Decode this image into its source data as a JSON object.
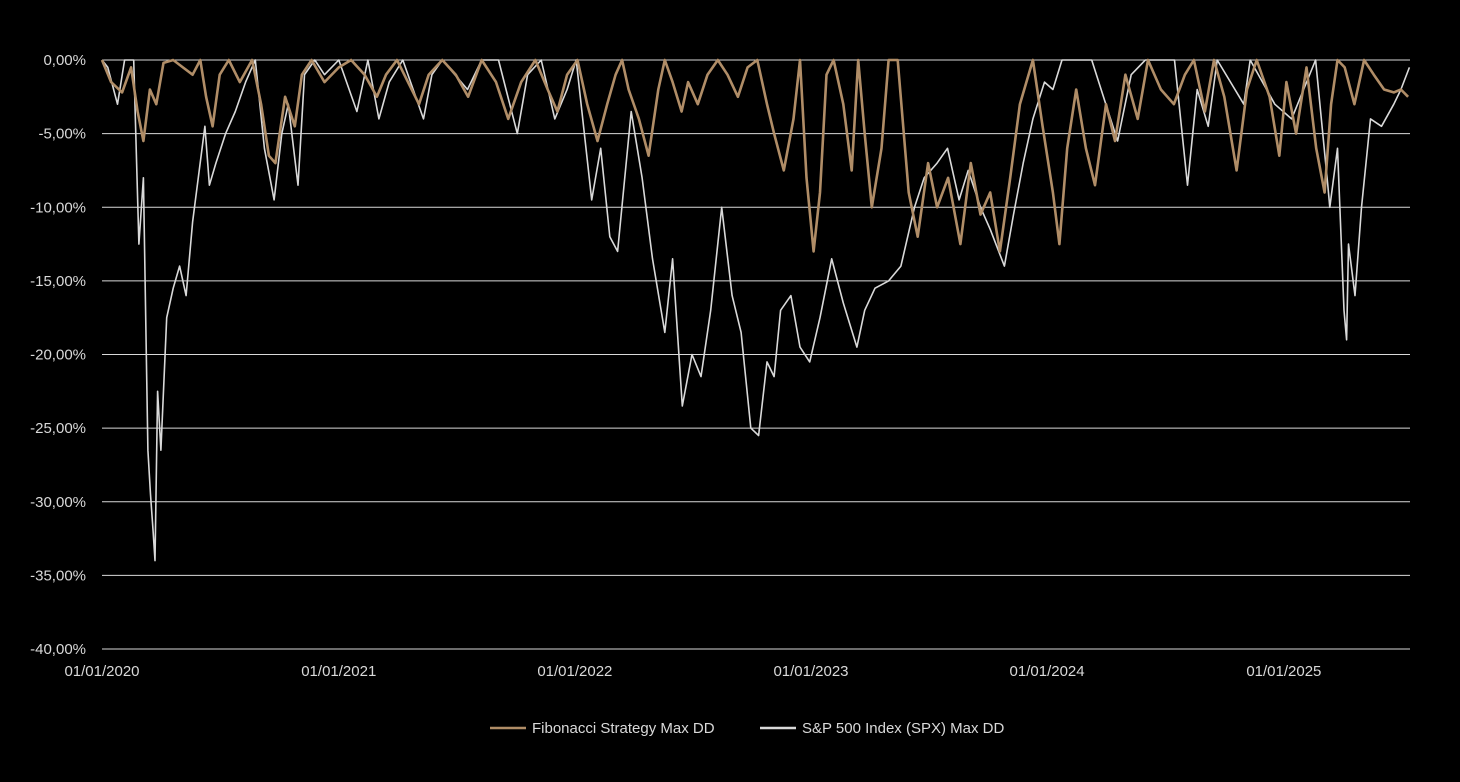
{
  "colors": {
    "background": "#000000",
    "grid": "#d9d9d9",
    "text": "#d9d9d9"
  },
  "chart_data": {
    "type": "line",
    "title": "",
    "xlabel": "",
    "ylabel": "",
    "ylim": [
      -40,
      0
    ],
    "y_ticks": [
      0,
      -5,
      -10,
      -15,
      -20,
      -25,
      -30,
      -35,
      -40
    ],
    "y_tick_labels": [
      "0,00%",
      "-5,00%",
      "-10,00%",
      "-15,00%",
      "-20,00%",
      "-25,00%",
      "-30,00%",
      "-35,00%",
      "-40,00%"
    ],
    "xlim": [
      "2020-01-01",
      "2025-07-15"
    ],
    "x_ticks": [
      "2020-01-01",
      "2021-01-01",
      "2022-01-01",
      "2023-01-01",
      "2024-01-01",
      "2025-01-01"
    ],
    "x_tick_labels": [
      "01/01/2020",
      "01/01/2021",
      "01/01/2022",
      "01/01/2023",
      "01/01/2024",
      "01/01/2025"
    ],
    "grid": "horizontal",
    "legend": "bottom",
    "series": [
      {
        "name": "Fibonacci Strategy Max DD",
        "color": "#b08d67",
        "points": [
          [
            "2020-01-01",
            0.0
          ],
          [
            "2020-01-15",
            -1.5
          ],
          [
            "2020-02-01",
            -2.2
          ],
          [
            "2020-02-15",
            -0.5
          ],
          [
            "2020-02-25",
            -3.5
          ],
          [
            "2020-03-05",
            -5.5
          ],
          [
            "2020-03-15",
            -2.0
          ],
          [
            "2020-03-25",
            -3.0
          ],
          [
            "2020-04-05",
            -0.2
          ],
          [
            "2020-04-20",
            0.0
          ],
          [
            "2020-05-05",
            -0.5
          ],
          [
            "2020-05-20",
            -1.0
          ],
          [
            "2020-06-01",
            0.0
          ],
          [
            "2020-06-10",
            -2.5
          ],
          [
            "2020-06-20",
            -4.5
          ],
          [
            "2020-07-01",
            -1.0
          ],
          [
            "2020-07-15",
            0.0
          ],
          [
            "2020-08-01",
            -1.5
          ],
          [
            "2020-08-20",
            0.0
          ],
          [
            "2020-09-03",
            -3.0
          ],
          [
            "2020-09-15",
            -6.5
          ],
          [
            "2020-09-25",
            -7.0
          ],
          [
            "2020-10-10",
            -2.5
          ],
          [
            "2020-10-25",
            -4.5
          ],
          [
            "2020-11-05",
            -1.0
          ],
          [
            "2020-11-20",
            0.0
          ],
          [
            "2020-12-10",
            -1.5
          ],
          [
            "2021-01-01",
            -0.5
          ],
          [
            "2021-01-20",
            0.0
          ],
          [
            "2021-02-10",
            -1.0
          ],
          [
            "2021-03-01",
            -2.5
          ],
          [
            "2021-03-15",
            -1.0
          ],
          [
            "2021-04-01",
            0.0
          ],
          [
            "2021-05-05",
            -3.0
          ],
          [
            "2021-05-20",
            -1.0
          ],
          [
            "2021-06-10",
            0.0
          ],
          [
            "2021-07-01",
            -1.0
          ],
          [
            "2021-07-20",
            -2.5
          ],
          [
            "2021-08-10",
            0.0
          ],
          [
            "2021-09-01",
            -1.5
          ],
          [
            "2021-09-20",
            -4.0
          ],
          [
            "2021-10-10",
            -1.5
          ],
          [
            "2021-11-01",
            0.0
          ],
          [
            "2021-11-20",
            -2.0
          ],
          [
            "2021-12-05",
            -3.5
          ],
          [
            "2021-12-20",
            -1.0
          ],
          [
            "2022-01-05",
            0.0
          ],
          [
            "2022-01-20",
            -3.0
          ],
          [
            "2022-02-05",
            -5.5
          ],
          [
            "2022-02-20",
            -3.0
          ],
          [
            "2022-03-05",
            -1.0
          ],
          [
            "2022-03-15",
            0.0
          ],
          [
            "2022-03-25",
            -2.0
          ],
          [
            "2022-04-10",
            -4.0
          ],
          [
            "2022-04-25",
            -6.5
          ],
          [
            "2022-05-10",
            -2.0
          ],
          [
            "2022-05-20",
            0.0
          ],
          [
            "2022-06-01",
            -1.5
          ],
          [
            "2022-06-15",
            -3.5
          ],
          [
            "2022-06-25",
            -1.5
          ],
          [
            "2022-07-10",
            -3.0
          ],
          [
            "2022-07-25",
            -1.0
          ],
          [
            "2022-08-10",
            0.0
          ],
          [
            "2022-08-25",
            -1.0
          ],
          [
            "2022-09-10",
            -2.5
          ],
          [
            "2022-09-25",
            -0.5
          ],
          [
            "2022-10-10",
            0.0
          ],
          [
            "2022-10-25",
            -3.0
          ],
          [
            "2022-11-05",
            -5.0
          ],
          [
            "2022-11-20",
            -7.5
          ],
          [
            "2022-12-05",
            -4.0
          ],
          [
            "2022-12-15",
            0.0
          ],
          [
            "2022-12-25",
            -8.0
          ],
          [
            "2023-01-05",
            -13.0
          ],
          [
            "2023-01-15",
            -9.0
          ],
          [
            "2023-01-25",
            -1.0
          ],
          [
            "2023-02-05",
            0.0
          ],
          [
            "2023-02-20",
            -3.0
          ],
          [
            "2023-03-05",
            -7.5
          ],
          [
            "2023-03-15",
            0.0
          ],
          [
            "2023-03-25",
            -5.0
          ],
          [
            "2023-04-05",
            -10.0
          ],
          [
            "2023-04-20",
            -6.0
          ],
          [
            "2023-05-01",
            0.0
          ],
          [
            "2023-05-15",
            0.0
          ],
          [
            "2023-06-01",
            -9.0
          ],
          [
            "2023-06-15",
            -12.0
          ],
          [
            "2023-07-01",
            -7.0
          ],
          [
            "2023-07-15",
            -10.0
          ],
          [
            "2023-08-01",
            -8.0
          ],
          [
            "2023-08-20",
            -12.5
          ],
          [
            "2023-09-05",
            -7.0
          ],
          [
            "2023-09-20",
            -10.5
          ],
          [
            "2023-10-05",
            -9.0
          ],
          [
            "2023-10-20",
            -13.0
          ],
          [
            "2023-11-05",
            -8.0
          ],
          [
            "2023-11-20",
            -3.0
          ],
          [
            "2023-12-10",
            0.0
          ],
          [
            "2023-12-25",
            -4.5
          ],
          [
            "2024-01-10",
            -9.0
          ],
          [
            "2024-01-20",
            -12.5
          ],
          [
            "2024-02-01",
            -6.0
          ],
          [
            "2024-02-15",
            -2.0
          ],
          [
            "2024-03-01",
            -6.0
          ],
          [
            "2024-03-15",
            -8.5
          ],
          [
            "2024-04-01",
            -3.0
          ],
          [
            "2024-04-15",
            -5.5
          ],
          [
            "2024-05-01",
            -1.0
          ],
          [
            "2024-05-20",
            -4.0
          ],
          [
            "2024-06-05",
            0.0
          ],
          [
            "2024-06-25",
            -2.0
          ],
          [
            "2024-07-15",
            -3.0
          ],
          [
            "2024-08-01",
            -1.0
          ],
          [
            "2024-08-15",
            0.0
          ],
          [
            "2024-09-01",
            -3.5
          ],
          [
            "2024-09-15",
            0.0
          ],
          [
            "2024-10-01",
            -2.5
          ],
          [
            "2024-10-20",
            -7.5
          ],
          [
            "2024-11-05",
            -2.0
          ],
          [
            "2024-11-20",
            0.0
          ],
          [
            "2024-12-10",
            -2.5
          ],
          [
            "2024-12-25",
            -6.5
          ],
          [
            "2025-01-05",
            -1.5
          ],
          [
            "2025-01-20",
            -5.0
          ],
          [
            "2025-02-05",
            -0.5
          ],
          [
            "2025-02-20",
            -6.0
          ],
          [
            "2025-03-05",
            -9.0
          ],
          [
            "2025-03-15",
            -3.0
          ],
          [
            "2025-03-25",
            0.0
          ],
          [
            "2025-04-05",
            -0.5
          ],
          [
            "2025-04-20",
            -3.0
          ],
          [
            "2025-05-05",
            0.0
          ],
          [
            "2025-05-20",
            -1.0
          ],
          [
            "2025-06-05",
            -2.0
          ],
          [
            "2025-06-20",
            -2.2
          ],
          [
            "2025-07-01",
            -2.0
          ],
          [
            "2025-07-12",
            -2.5
          ]
        ]
      },
      {
        "name": "S&P 500 Index (SPX) Max DD",
        "color": "#d9d9d9",
        "points": [
          [
            "2020-01-01",
            0.0
          ],
          [
            "2020-01-10",
            -0.5
          ],
          [
            "2020-01-25",
            -3.0
          ],
          [
            "2020-02-05",
            0.0
          ],
          [
            "2020-02-19",
            0.0
          ],
          [
            "2020-02-27",
            -12.5
          ],
          [
            "2020-03-05",
            -8.0
          ],
          [
            "2020-03-12",
            -26.5
          ],
          [
            "2020-03-16",
            -29.5
          ],
          [
            "2020-03-20",
            -32.0
          ],
          [
            "2020-03-23",
            -34.0
          ],
          [
            "2020-03-27",
            -22.5
          ],
          [
            "2020-04-01",
            -26.5
          ],
          [
            "2020-04-10",
            -17.5
          ],
          [
            "2020-04-20",
            -15.5
          ],
          [
            "2020-04-30",
            -14.0
          ],
          [
            "2020-05-10",
            -16.0
          ],
          [
            "2020-05-20",
            -11.0
          ],
          [
            "2020-06-08",
            -4.5
          ],
          [
            "2020-06-15",
            -8.5
          ],
          [
            "2020-06-25",
            -7.0
          ],
          [
            "2020-07-10",
            -5.0
          ],
          [
            "2020-07-25",
            -3.5
          ],
          [
            "2020-08-10",
            -1.5
          ],
          [
            "2020-08-25",
            0.0
          ],
          [
            "2020-09-08",
            -6.0
          ],
          [
            "2020-09-23",
            -9.5
          ],
          [
            "2020-10-05",
            -5.0
          ],
          [
            "2020-10-15",
            -3.0
          ],
          [
            "2020-10-30",
            -8.5
          ],
          [
            "2020-11-09",
            -1.0
          ],
          [
            "2020-11-25",
            0.0
          ],
          [
            "2020-12-10",
            -1.0
          ],
          [
            "2021-01-01",
            0.0
          ],
          [
            "2021-01-29",
            -3.5
          ],
          [
            "2021-02-15",
            0.0
          ],
          [
            "2021-03-04",
            -4.0
          ],
          [
            "2021-03-20",
            -1.5
          ],
          [
            "2021-04-10",
            0.0
          ],
          [
            "2021-05-12",
            -4.0
          ],
          [
            "2021-05-25",
            -1.0
          ],
          [
            "2021-06-10",
            0.0
          ],
          [
            "2021-07-19",
            -2.0
          ],
          [
            "2021-08-10",
            0.0
          ],
          [
            "2021-09-05",
            0.0
          ],
          [
            "2021-10-04",
            -5.0
          ],
          [
            "2021-10-20",
            -1.0
          ],
          [
            "2021-11-10",
            0.0
          ],
          [
            "2021-12-01",
            -4.0
          ],
          [
            "2021-12-20",
            -2.0
          ],
          [
            "2022-01-03",
            0.0
          ],
          [
            "2022-01-27",
            -9.5
          ],
          [
            "2022-02-10",
            -6.0
          ],
          [
            "2022-02-24",
            -12.0
          ],
          [
            "2022-03-08",
            -13.0
          ],
          [
            "2022-03-29",
            -3.5
          ],
          [
            "2022-04-15",
            -8.0
          ],
          [
            "2022-05-01",
            -13.5
          ],
          [
            "2022-05-20",
            -18.5
          ],
          [
            "2022-06-01",
            -13.5
          ],
          [
            "2022-06-16",
            -23.5
          ],
          [
            "2022-07-01",
            -20.0
          ],
          [
            "2022-07-15",
            -21.5
          ],
          [
            "2022-07-30",
            -17.0
          ],
          [
            "2022-08-16",
            -10.0
          ],
          [
            "2022-09-01",
            -16.0
          ],
          [
            "2022-09-15",
            -18.5
          ],
          [
            "2022-09-30",
            -25.0
          ],
          [
            "2022-10-12",
            -25.5
          ],
          [
            "2022-10-25",
            -20.5
          ],
          [
            "2022-11-05",
            -21.5
          ],
          [
            "2022-11-15",
            -17.0
          ],
          [
            "2022-12-01",
            -16.0
          ],
          [
            "2022-12-15",
            -19.5
          ],
          [
            "2022-12-30",
            -20.5
          ],
          [
            "2023-01-15",
            -17.5
          ],
          [
            "2023-02-02",
            -13.5
          ],
          [
            "2023-02-20",
            -16.5
          ],
          [
            "2023-03-13",
            -19.5
          ],
          [
            "2023-03-25",
            -17.0
          ],
          [
            "2023-04-10",
            -15.5
          ],
          [
            "2023-05-01",
            -15.0
          ],
          [
            "2023-05-20",
            -14.0
          ],
          [
            "2023-06-10",
            -10.0
          ],
          [
            "2023-06-25",
            -8.0
          ],
          [
            "2023-07-15",
            -7.0
          ],
          [
            "2023-07-31",
            -6.0
          ],
          [
            "2023-08-18",
            -9.5
          ],
          [
            "2023-09-01",
            -7.5
          ],
          [
            "2023-09-20",
            -10.0
          ],
          [
            "2023-10-05",
            -11.5
          ],
          [
            "2023-10-27",
            -14.0
          ],
          [
            "2023-11-10",
            -10.5
          ],
          [
            "2023-11-25",
            -7.0
          ],
          [
            "2023-12-10",
            -4.0
          ],
          [
            "2023-12-28",
            -1.5
          ],
          [
            "2024-01-10",
            -2.0
          ],
          [
            "2024-01-24",
            0.0
          ],
          [
            "2024-02-15",
            0.0
          ],
          [
            "2024-03-10",
            0.0
          ],
          [
            "2024-04-19",
            -5.5
          ],
          [
            "2024-05-10",
            -1.0
          ],
          [
            "2024-06-01",
            0.0
          ],
          [
            "2024-07-16",
            0.0
          ],
          [
            "2024-08-05",
            -8.5
          ],
          [
            "2024-08-20",
            -2.0
          ],
          [
            "2024-09-06",
            -4.5
          ],
          [
            "2024-09-20",
            0.0
          ],
          [
            "2024-10-31",
            -3.0
          ],
          [
            "2024-11-10",
            0.0
          ],
          [
            "2024-12-18",
            -3.0
          ],
          [
            "2025-01-13",
            -4.0
          ],
          [
            "2025-02-19",
            0.0
          ],
          [
            "2025-03-10",
            -8.5
          ],
          [
            "2025-03-13",
            -10.0
          ],
          [
            "2025-03-25",
            -6.0
          ],
          [
            "2025-04-04",
            -17.0
          ],
          [
            "2025-04-08",
            -19.0
          ],
          [
            "2025-04-11",
            -12.5
          ],
          [
            "2025-04-21",
            -16.0
          ],
          [
            "2025-05-01",
            -10.0
          ],
          [
            "2025-05-15",
            -4.0
          ],
          [
            "2025-06-01",
            -4.5
          ],
          [
            "2025-06-20",
            -3.0
          ],
          [
            "2025-07-01",
            -2.0
          ],
          [
            "2025-07-14",
            -0.5
          ]
        ]
      }
    ]
  }
}
